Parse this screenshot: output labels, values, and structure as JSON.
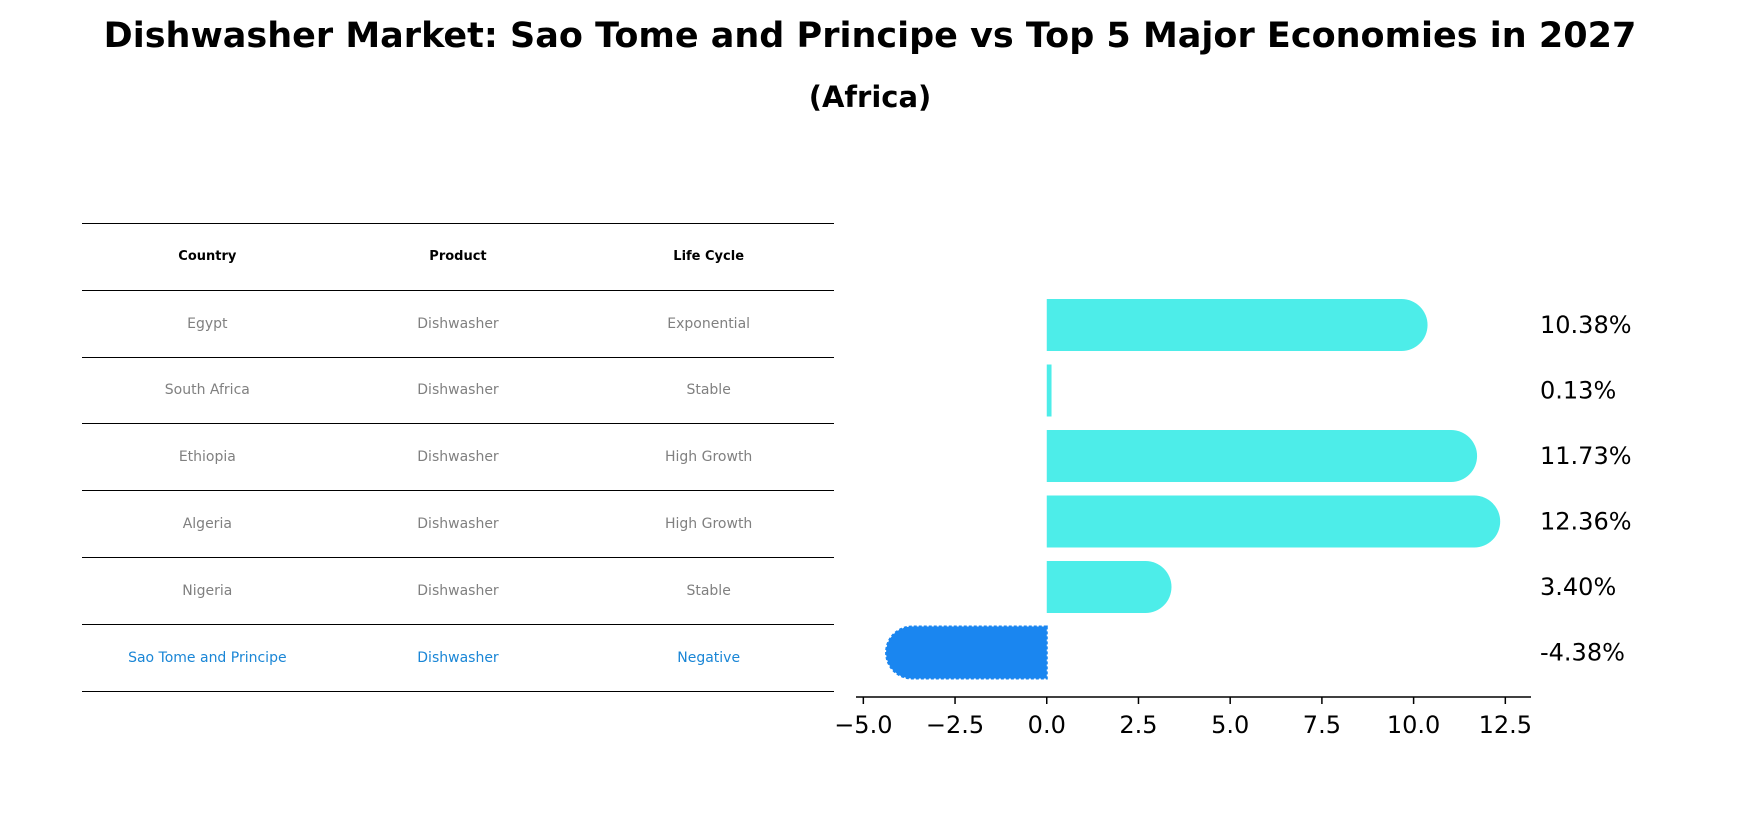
{
  "title": "Dishwasher Market: Sao Tome and Principe vs Top 5 Major Economies in 2027",
  "subtitle": "(Africa)",
  "table": {
    "headers": [
      "Country",
      "Product",
      "Life Cycle"
    ],
    "rows": [
      {
        "country": "Egypt",
        "product": "Dishwasher",
        "life_cycle": "Exponential"
      },
      {
        "country": "South Africa",
        "product": "Dishwasher",
        "life_cycle": "Stable"
      },
      {
        "country": "Ethiopia",
        "product": "Dishwasher",
        "life_cycle": "High Growth"
      },
      {
        "country": "Algeria",
        "product": "Dishwasher",
        "life_cycle": "High Growth"
      },
      {
        "country": "Nigeria",
        "product": "Dishwasher",
        "life_cycle": "Stable"
      },
      {
        "country": "Sao Tome and Principe",
        "product": "Dishwasher",
        "life_cycle": "Negative"
      }
    ],
    "highlight_row": 5
  },
  "chart_data": {
    "type": "bar",
    "orientation": "horizontal",
    "categories": [
      "Egypt",
      "South Africa",
      "Ethiopia",
      "Algeria",
      "Nigeria",
      "Sao Tome and Principe"
    ],
    "values": [
      10.38,
      0.13,
      11.73,
      12.36,
      3.4,
      -4.38
    ],
    "value_labels": [
      "10.38%",
      "0.13%",
      "11.73%",
      "12.36%",
      "3.40%",
      "-4.38%"
    ],
    "xlim": [
      -5.2,
      13.2
    ],
    "xticks": [
      -5.0,
      -2.5,
      0.0,
      2.5,
      5.0,
      7.5,
      10.0,
      12.5
    ],
    "xtick_labels": [
      "−5.0",
      "−2.5",
      "0.0",
      "2.5",
      "5.0",
      "7.5",
      "10.0",
      "12.5"
    ],
    "colors": {
      "positive": "#4dede9",
      "highlight": "#1a86f0"
    },
    "grid": false
  }
}
